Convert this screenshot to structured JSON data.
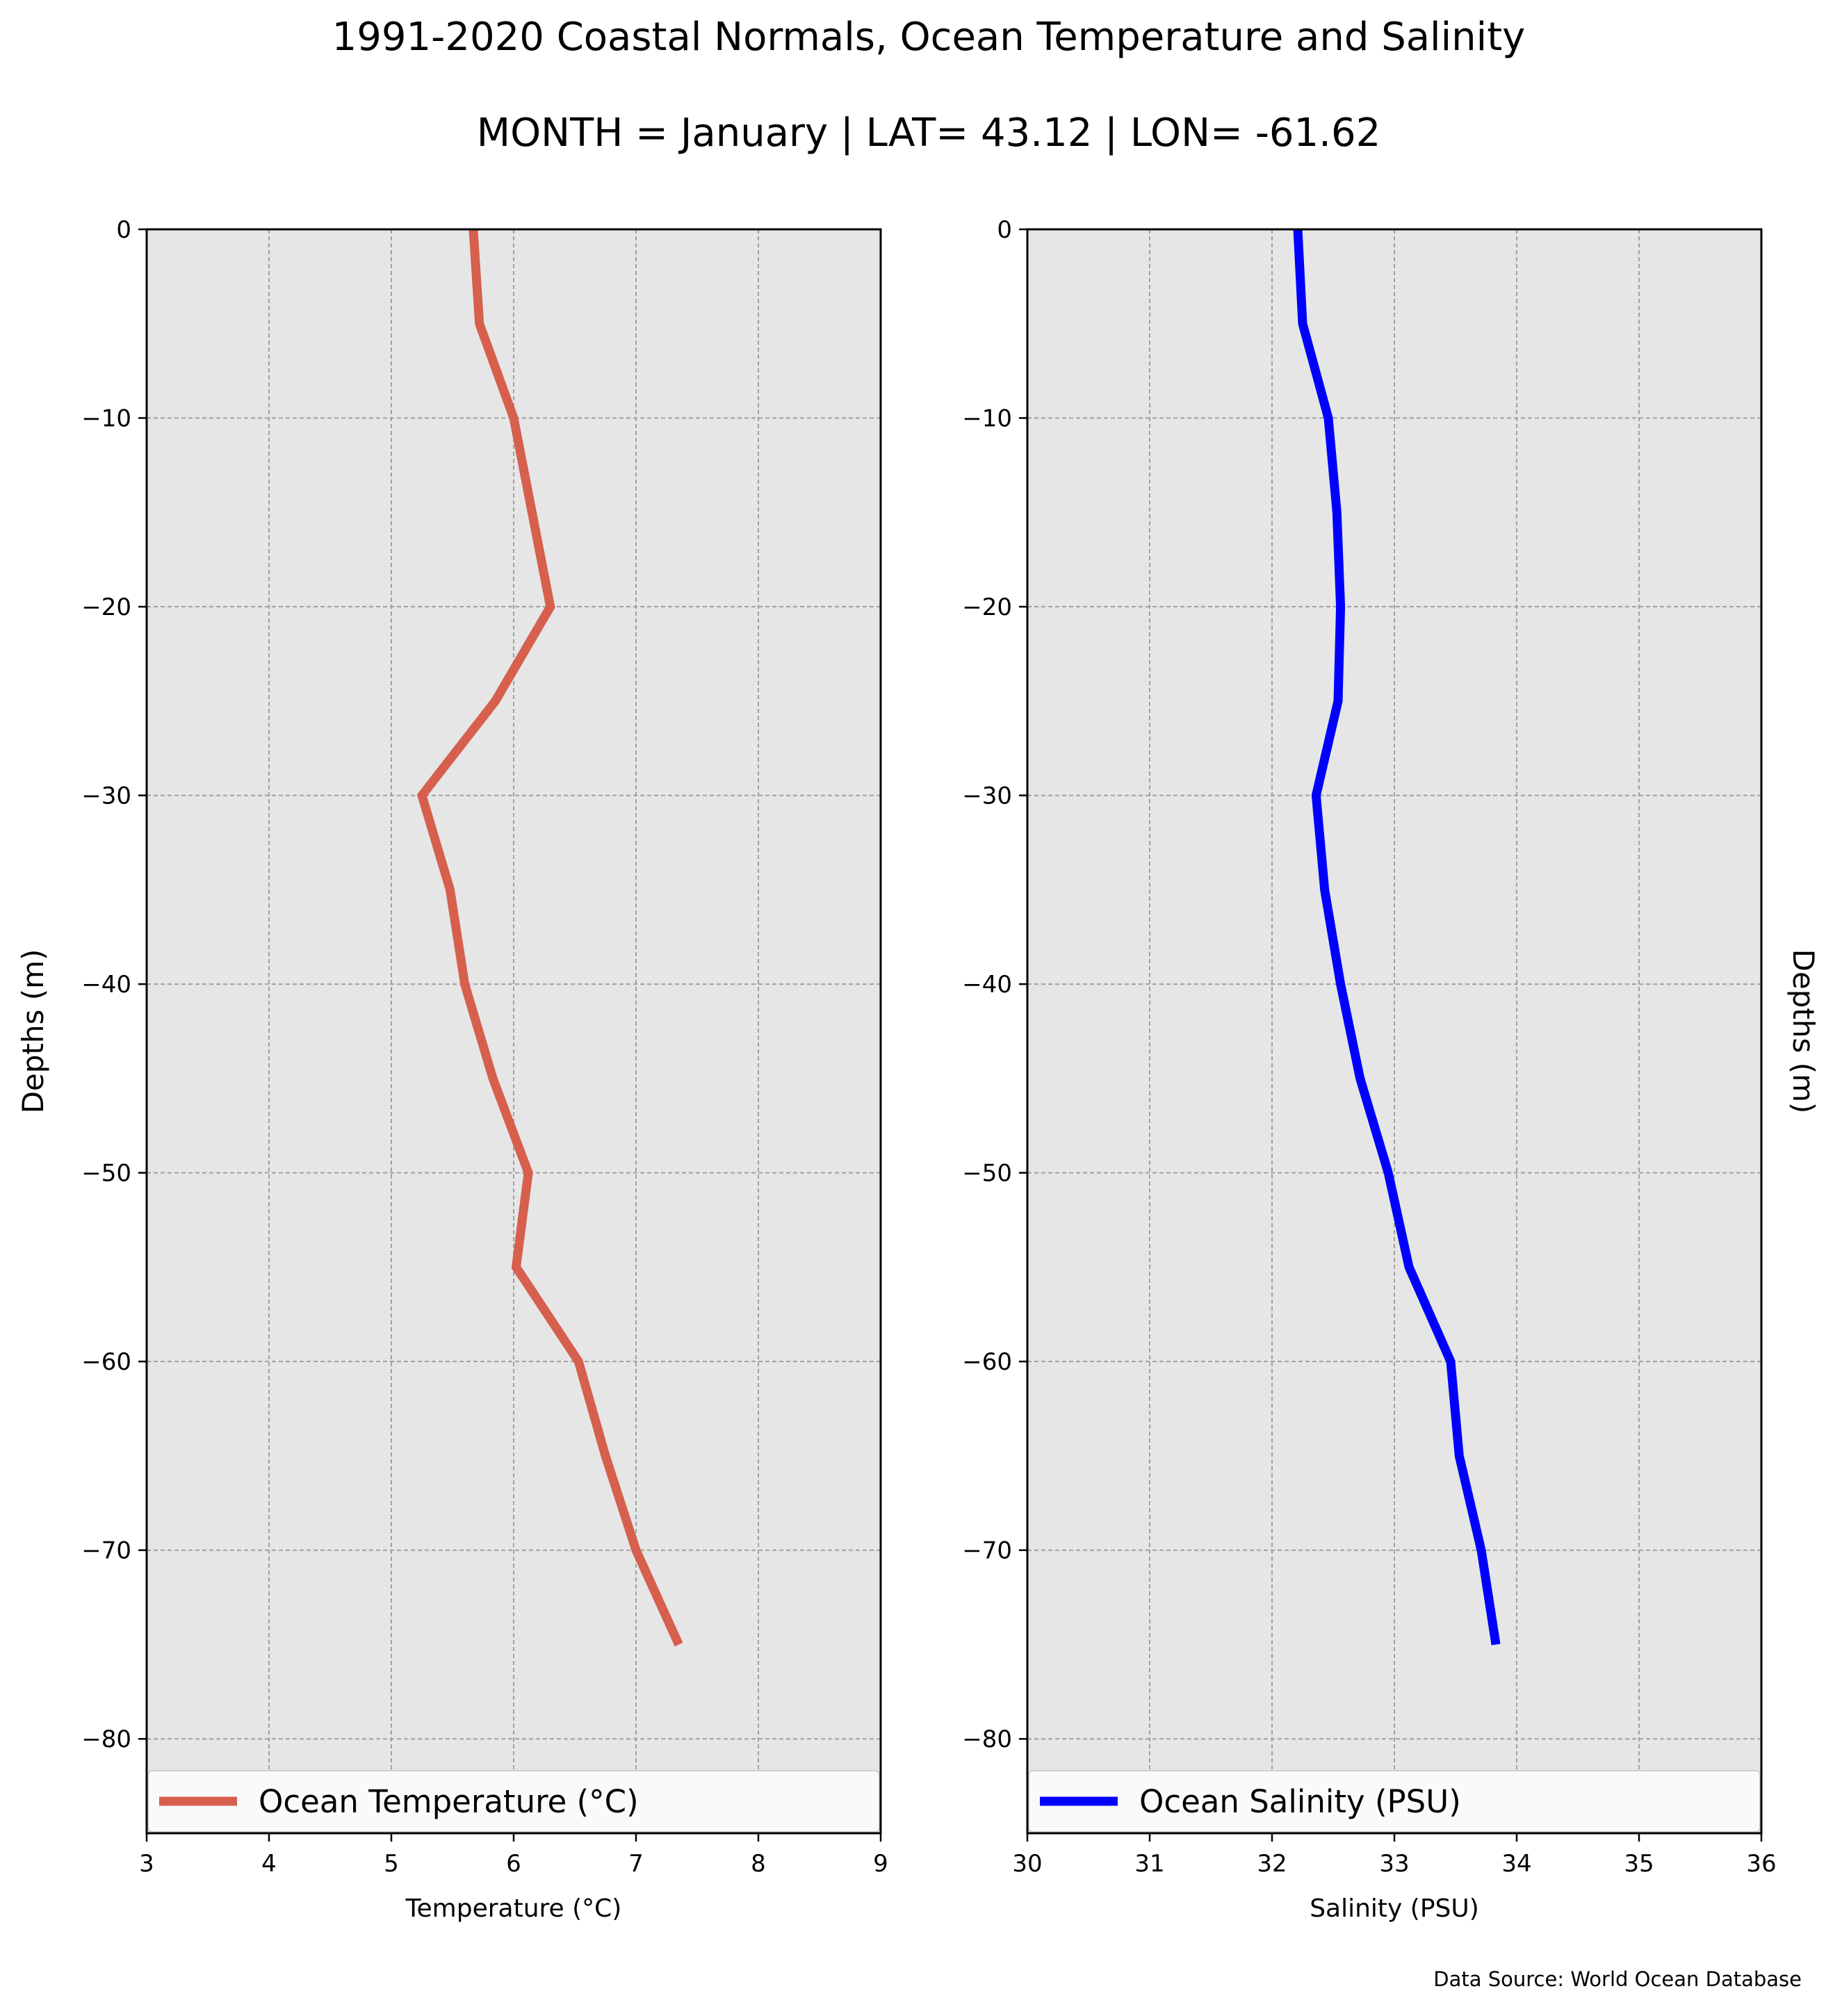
{
  "title": "1991-2020 Coastal Normals, Ocean Temperature and Salinity",
  "subtitle": "MONTH = January | LAT= 43.12 | LON= -61.62",
  "source_note": "Data Source: World Ocean Database",
  "colors": {
    "plot_background": "#e6e6e6",
    "grid": "#a0a0a0",
    "temperature_line": "#d65f4e",
    "salinity_line": "#0000ff"
  },
  "chart_data": [
    {
      "type": "line",
      "xlabel": "Temperature ($^\\circ$C)",
      "xlabel_display": "Temperature (°C)",
      "ylabel": "Depths (m)",
      "xlim": [
        3,
        9
      ],
      "ylim": [
        -85,
        0
      ],
      "xticks": [
        3,
        4,
        5,
        6,
        7,
        8,
        9
      ],
      "yticks": [
        0,
        -10,
        -20,
        -30,
        -40,
        -50,
        -60,
        -70,
        -80
      ],
      "grid": true,
      "legend": "bottom",
      "series": [
        {
          "name": "Ocean Temperature (°C)",
          "x": [
            5.67,
            5.72,
            6.0,
            6.3,
            5.85,
            5.25,
            5.48,
            5.6,
            5.83,
            6.12,
            6.02,
            6.53,
            6.75,
            7.0,
            7.35
          ],
          "y": [
            0,
            -5,
            -10,
            -20,
            -25,
            -30,
            -35,
            -40,
            -45,
            -50,
            -55,
            -60,
            -65,
            -70,
            -75
          ]
        }
      ]
    },
    {
      "type": "line",
      "xlabel": "Salinity (PSU)",
      "ylabel": "Depths (m)",
      "xlim": [
        30,
        36
      ],
      "ylim": [
        -85,
        0
      ],
      "xticks": [
        30,
        31,
        32,
        33,
        34,
        35,
        36
      ],
      "yticks": [
        0,
        -10,
        -20,
        -30,
        -40,
        -50,
        -60,
        -70,
        -80
      ],
      "grid": true,
      "legend": "bottom",
      "series": [
        {
          "name": "Ocean Salinity (PSU)",
          "x": [
            32.21,
            32.25,
            32.46,
            32.53,
            32.56,
            32.54,
            32.36,
            32.43,
            32.56,
            32.72,
            32.95,
            33.12,
            33.46,
            33.53,
            33.71,
            33.83
          ],
          "y": [
            0,
            -5,
            -10,
            -15,
            -20,
            -25,
            -30,
            -35,
            -40,
            -45,
            -50,
            -55,
            -60,
            -65,
            -70,
            -75
          ]
        }
      ]
    }
  ]
}
